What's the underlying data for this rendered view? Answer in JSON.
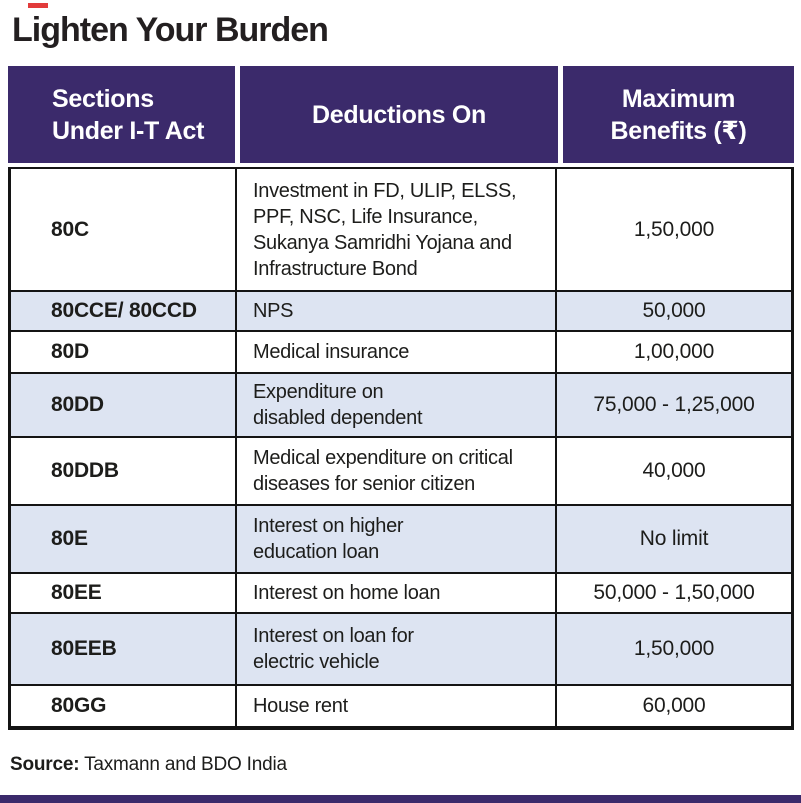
{
  "colors": {
    "header_purple": "#3b2a6b",
    "row_blue": "#dde4f2",
    "text_dark": "#1d1d1b",
    "border_black": "#141414",
    "accent_red": "#e23b3b"
  },
  "title": "Lighten Your Burden",
  "table": {
    "headers": [
      {
        "label": "Sections\nUnder I-T Act"
      },
      {
        "label": "Deductions On"
      },
      {
        "label": "Maximum\nBenefits (₹)"
      }
    ],
    "rows": [
      {
        "section": "80C",
        "deduction": "Investment in FD, ULIP, ELSS,\nPPF, NSC, Life Insurance,\nSukanya Samridhi Yojana and\nInfrastructure Bond",
        "benefit": "1,50,000",
        "shaded": false
      },
      {
        "section": "80CCE/ 80CCD",
        "deduction": "NPS",
        "benefit": "50,000",
        "shaded": true
      },
      {
        "section": "80D",
        "deduction": "Medical insurance",
        "benefit": "1,00,000",
        "shaded": false
      },
      {
        "section": "80DD",
        "deduction": "Expenditure on\ndisabled dependent",
        "benefit": "75,000 - 1,25,000",
        "shaded": true
      },
      {
        "section": "80DDB",
        "deduction": "Medical expenditure on critical\ndiseases for senior citizen",
        "benefit": "40,000",
        "shaded": false
      },
      {
        "section": "80E",
        "deduction": "Interest on higher\neducation  loan",
        "benefit": "No limit",
        "shaded": true
      },
      {
        "section": "80EE",
        "deduction": "Interest on home loan",
        "benefit": "50,000 - 1,50,000",
        "shaded": false
      },
      {
        "section": "80EEB",
        "deduction": "Interest on loan for\nelectric vehicle",
        "benefit": "1,50,000",
        "shaded": true
      },
      {
        "section": "80GG",
        "deduction": "House rent",
        "benefit": "60,000",
        "shaded": false
      }
    ]
  },
  "footer": {
    "source_label": "Source:",
    "source_text": " Taxmann and BDO India"
  },
  "chart_data": {
    "type": "table",
    "title": "Lighten Your Burden",
    "columns": [
      "Sections Under I-T Act",
      "Deductions On",
      "Maximum Benefits (₹)"
    ],
    "rows": [
      [
        "80C",
        "Investment in FD, ULIP, ELSS, PPF, NSC, Life Insurance, Sukanya Samridhi Yojana and Infrastructure Bond",
        "1,50,000"
      ],
      [
        "80CCE/ 80CCD",
        "NPS",
        "50,000"
      ],
      [
        "80D",
        "Medical insurance",
        "1,00,000"
      ],
      [
        "80DD",
        "Expenditure on disabled dependent",
        "75,000 - 1,25,000"
      ],
      [
        "80DDB",
        "Medical expenditure on critical diseases for senior citizen",
        "40,000"
      ],
      [
        "80E",
        "Interest on higher education loan",
        "No limit"
      ],
      [
        "80EE",
        "Interest on home loan",
        "50,000 - 1,50,000"
      ],
      [
        "80EEB",
        "Interest on loan for electric vehicle",
        "1,50,000"
      ],
      [
        "80GG",
        "House rent",
        "60,000"
      ]
    ],
    "source": "Source: Taxmann and BDO India"
  }
}
